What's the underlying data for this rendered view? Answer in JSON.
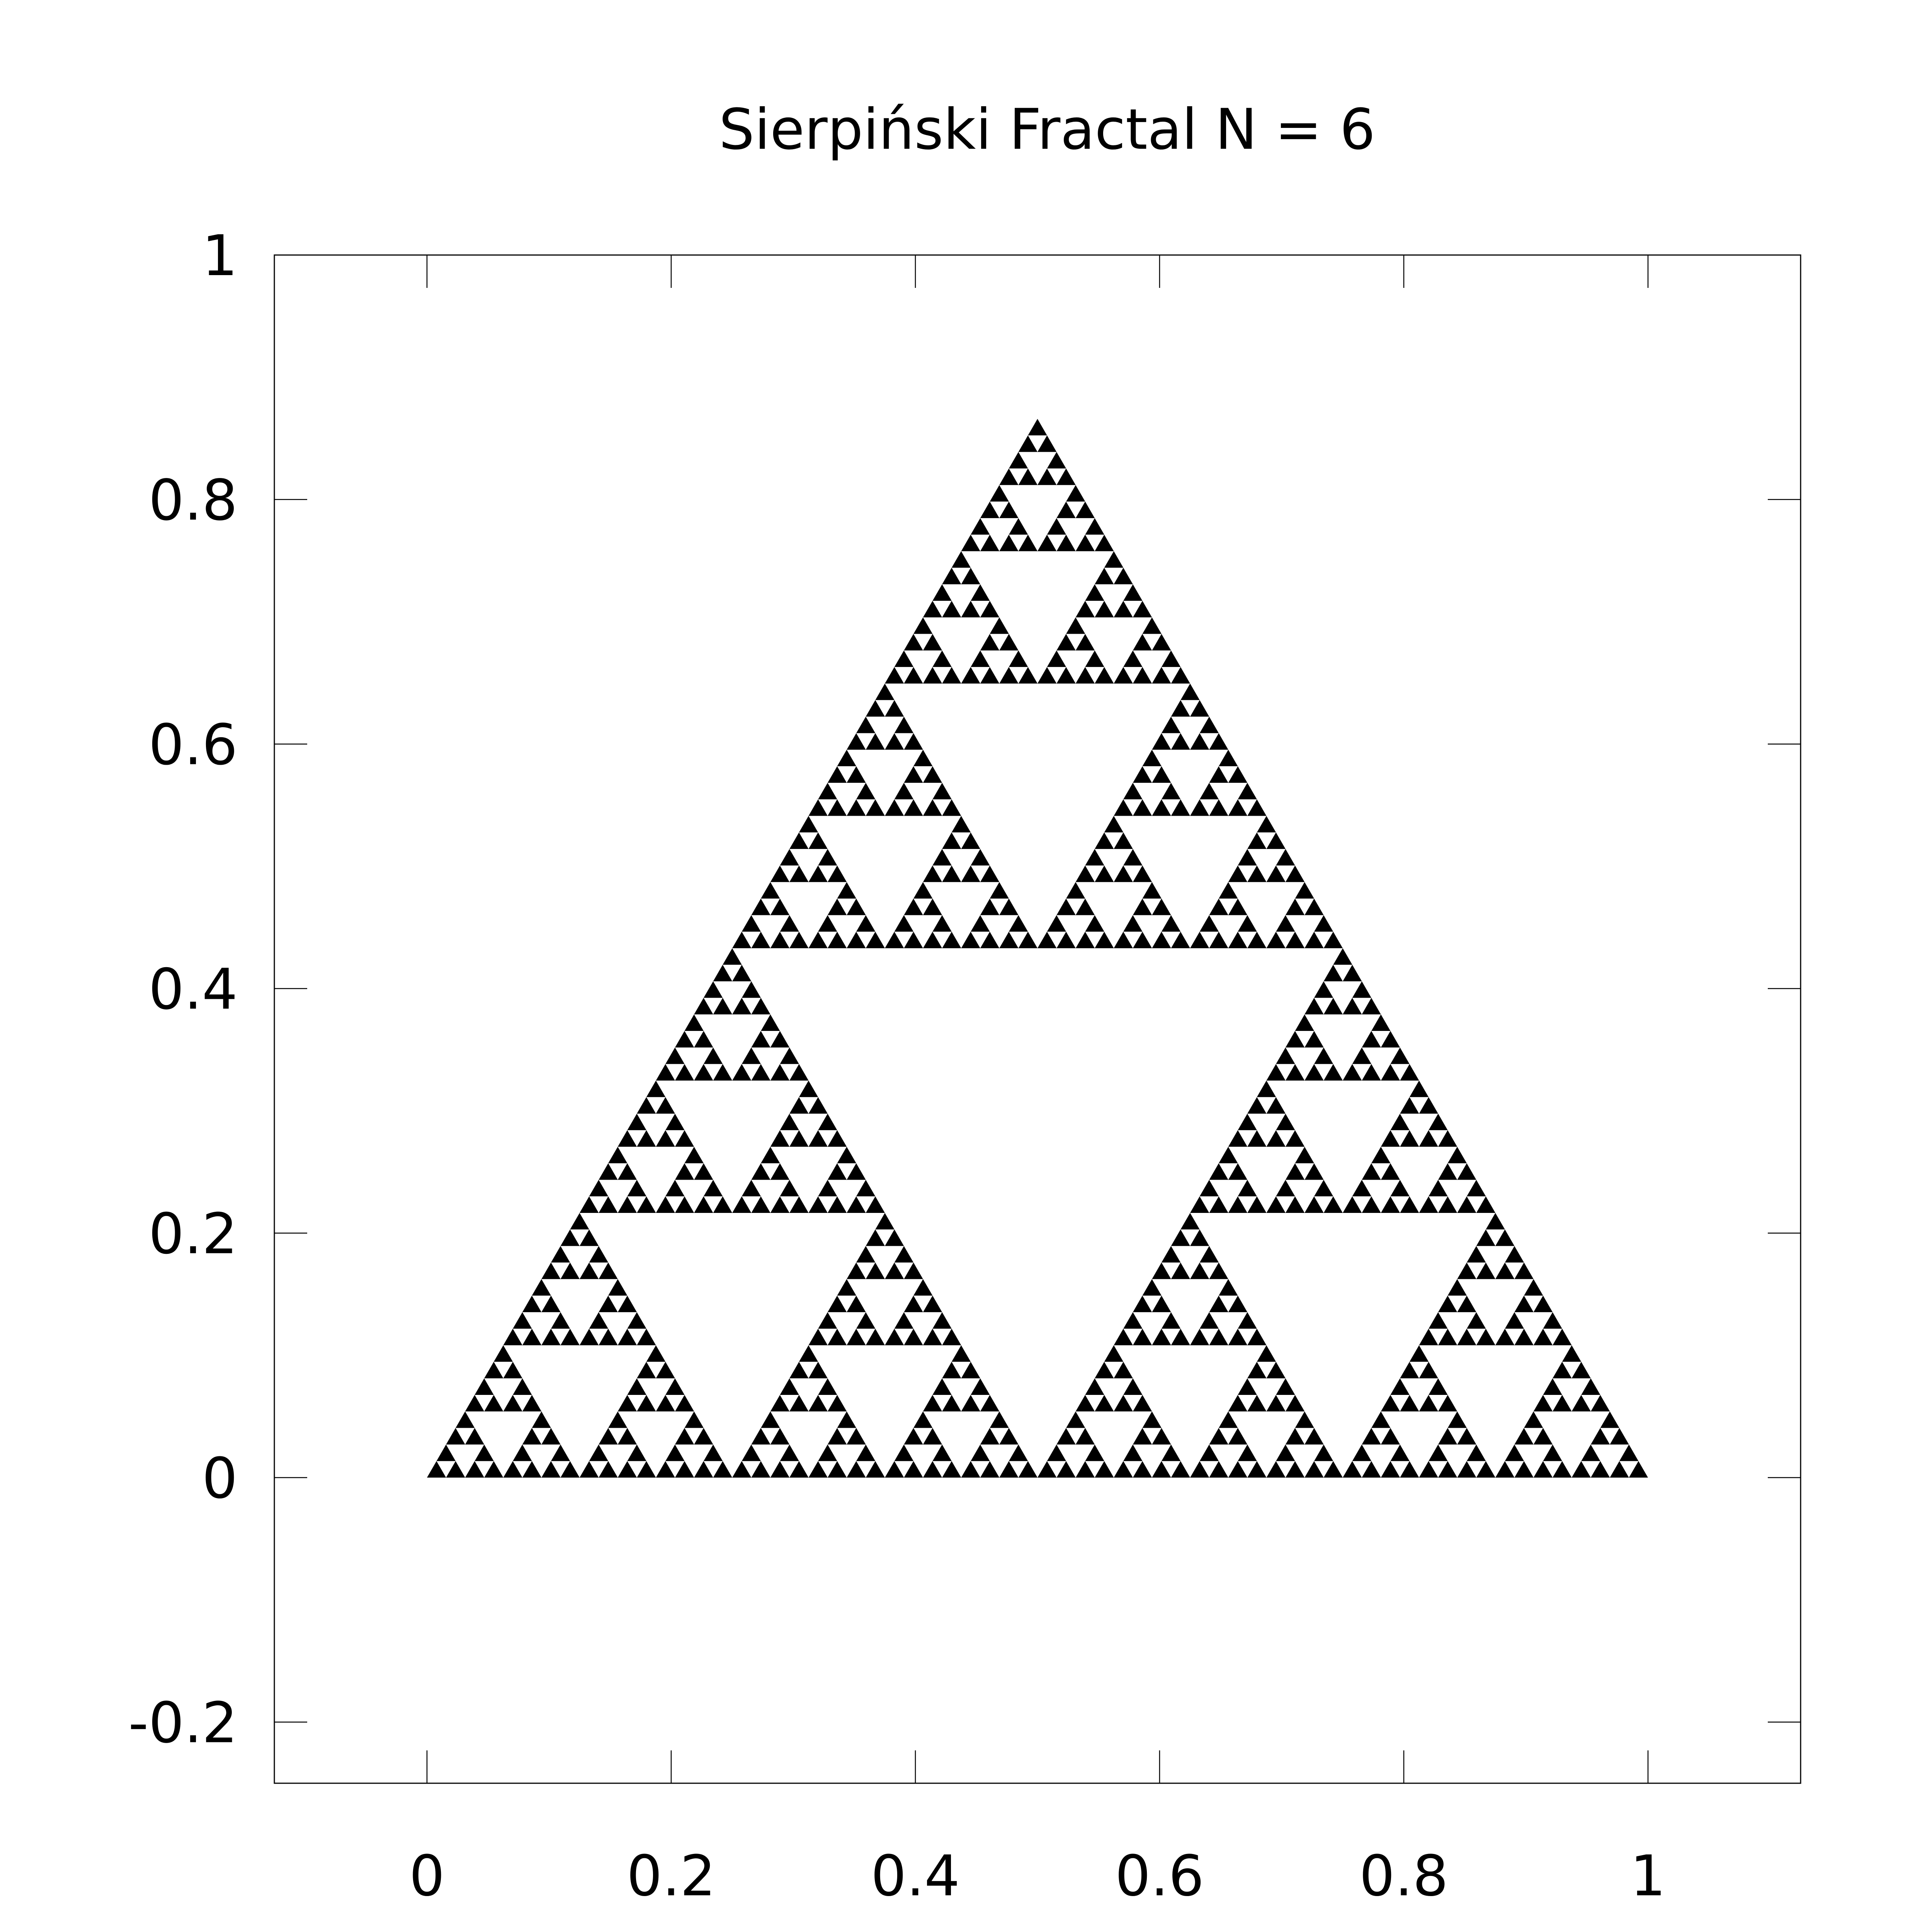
{
  "chart_data": {
    "type": "area",
    "title": "Sierpiński Fractal N = 6",
    "xlabel": "",
    "ylabel": "",
    "xlim": [
      -0.125,
      1.125
    ],
    "ylim": [
      -0.25,
      1.0
    ],
    "grid": false,
    "x_ticks": [
      0,
      0.2,
      0.4,
      0.6,
      0.8,
      1
    ],
    "x_tick_labels": [
      "0",
      "0.2",
      "0.4",
      "0.6",
      "0.8",
      "1"
    ],
    "y_ticks": [
      -0.2,
      0,
      0.2,
      0.4,
      0.6,
      0.8,
      1
    ],
    "y_tick_labels": [
      "-0.2",
      "0",
      "0.2",
      "0.4",
      "0.6",
      "0.8",
      "1"
    ],
    "fractal": {
      "depth": 6,
      "vertices": [
        [
          0,
          0
        ],
        [
          1,
          0
        ],
        [
          0.5,
          0.866
        ]
      ],
      "fill_color": "#000000"
    }
  }
}
